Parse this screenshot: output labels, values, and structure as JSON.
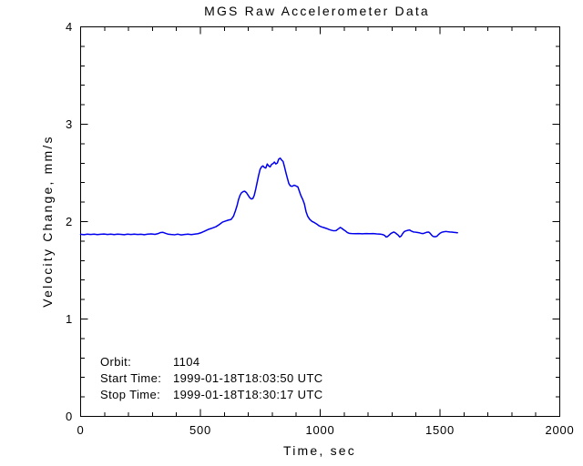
{
  "figure": {
    "background": "#ffffff"
  },
  "annotations": {
    "orbit_label": "Orbit:",
    "orbit_value": "1104",
    "start_label": "Start Time:",
    "start_value": "1999-01-18T18:03:50 UTC",
    "stop_label": "Stop Time:",
    "stop_value": "1999-01-18T18:30:17 UTC"
  },
  "chart_data": {
    "type": "line",
    "title": "MGS Raw Accelerometer Data",
    "xlabel": "Time, sec",
    "ylabel": "Velocity Change, mm/s",
    "xlim": [
      0,
      2000
    ],
    "ylim": [
      0,
      4
    ],
    "x_major_ticks": [
      0,
      500,
      1000,
      1500,
      2000
    ],
    "x_minor_step": 100,
    "y_major_ticks": [
      0,
      1,
      2,
      3,
      4
    ],
    "y_minor_step": 0.2,
    "grid": false,
    "legend": "none",
    "line_color": "#0000ee",
    "axis_color": "#000000",
    "series": [
      {
        "name": "velocity_change_mm_s",
        "points": [
          [
            0,
            1.87
          ],
          [
            14,
            1.866
          ],
          [
            28,
            1.871
          ],
          [
            42,
            1.868
          ],
          [
            56,
            1.872
          ],
          [
            70,
            1.867
          ],
          [
            84,
            1.87
          ],
          [
            98,
            1.873
          ],
          [
            112,
            1.868
          ],
          [
            126,
            1.871
          ],
          [
            140,
            1.867
          ],
          [
            154,
            1.872
          ],
          [
            168,
            1.869
          ],
          [
            182,
            1.866
          ],
          [
            196,
            1.871
          ],
          [
            210,
            1.868
          ],
          [
            224,
            1.872
          ],
          [
            238,
            1.868
          ],
          [
            252,
            1.87
          ],
          [
            266,
            1.866
          ],
          [
            280,
            1.871
          ],
          [
            295,
            1.874
          ],
          [
            310,
            1.869
          ],
          [
            322,
            1.876
          ],
          [
            334,
            1.888
          ],
          [
            344,
            1.89
          ],
          [
            354,
            1.88
          ],
          [
            364,
            1.872
          ],
          [
            378,
            1.868
          ],
          [
            392,
            1.865
          ],
          [
            406,
            1.871
          ],
          [
            420,
            1.863
          ],
          [
            434,
            1.868
          ],
          [
            448,
            1.871
          ],
          [
            462,
            1.867
          ],
          [
            476,
            1.872
          ],
          [
            490,
            1.876
          ],
          [
            505,
            1.888
          ],
          [
            520,
            1.905
          ],
          [
            535,
            1.922
          ],
          [
            550,
            1.934
          ],
          [
            565,
            1.948
          ],
          [
            580,
            1.972
          ],
          [
            592,
            1.995
          ],
          [
            604,
            2.005
          ],
          [
            616,
            2.015
          ],
          [
            628,
            2.022
          ],
          [
            638,
            2.055
          ],
          [
            646,
            2.11
          ],
          [
            653,
            2.165
          ],
          [
            659,
            2.225
          ],
          [
            665,
            2.268
          ],
          [
            671,
            2.295
          ],
          [
            678,
            2.308
          ],
          [
            685,
            2.312
          ],
          [
            692,
            2.298
          ],
          [
            699,
            2.272
          ],
          [
            706,
            2.245
          ],
          [
            713,
            2.232
          ],
          [
            719,
            2.238
          ],
          [
            725,
            2.272
          ],
          [
            731,
            2.335
          ],
          [
            737,
            2.405
          ],
          [
            743,
            2.475
          ],
          [
            749,
            2.535
          ],
          [
            755,
            2.562
          ],
          [
            761,
            2.572
          ],
          [
            767,
            2.556
          ],
          [
            773,
            2.55
          ],
          [
            779,
            2.592
          ],
          [
            785,
            2.572
          ],
          [
            791,
            2.562
          ],
          [
            797,
            2.588
          ],
          [
            803,
            2.596
          ],
          [
            809,
            2.612
          ],
          [
            815,
            2.592
          ],
          [
            821,
            2.602
          ],
          [
            827,
            2.642
          ],
          [
            833,
            2.652
          ],
          [
            839,
            2.632
          ],
          [
            845,
            2.618
          ],
          [
            851,
            2.562
          ],
          [
            857,
            2.502
          ],
          [
            863,
            2.446
          ],
          [
            869,
            2.392
          ],
          [
            875,
            2.368
          ],
          [
            883,
            2.362
          ],
          [
            891,
            2.374
          ],
          [
            899,
            2.366
          ],
          [
            907,
            2.356
          ],
          [
            913,
            2.312
          ],
          [
            920,
            2.264
          ],
          [
            927,
            2.228
          ],
          [
            934,
            2.182
          ],
          [
            941,
            2.102
          ],
          [
            948,
            2.054
          ],
          [
            956,
            2.024
          ],
          [
            966,
            2.002
          ],
          [
            976,
            1.99
          ],
          [
            986,
            1.974
          ],
          [
            996,
            1.956
          ],
          [
            1006,
            1.946
          ],
          [
            1016,
            1.938
          ],
          [
            1026,
            1.93
          ],
          [
            1036,
            1.92
          ],
          [
            1046,
            1.912
          ],
          [
            1056,
            1.906
          ],
          [
            1066,
            1.908
          ],
          [
            1076,
            1.926
          ],
          [
            1084,
            1.94
          ],
          [
            1091,
            1.93
          ],
          [
            1098,
            1.916
          ],
          [
            1105,
            1.905
          ],
          [
            1113,
            1.888
          ],
          [
            1121,
            1.88
          ],
          [
            1131,
            1.877
          ],
          [
            1146,
            1.876
          ],
          [
            1161,
            1.877
          ],
          [
            1176,
            1.875
          ],
          [
            1191,
            1.877
          ],
          [
            1206,
            1.876
          ],
          [
            1221,
            1.877
          ],
          [
            1236,
            1.874
          ],
          [
            1251,
            1.872
          ],
          [
            1261,
            1.867
          ],
          [
            1269,
            1.858
          ],
          [
            1275,
            1.842
          ],
          [
            1281,
            1.846
          ],
          [
            1288,
            1.862
          ],
          [
            1295,
            1.878
          ],
          [
            1301,
            1.886
          ],
          [
            1307,
            1.893
          ],
          [
            1313,
            1.886
          ],
          [
            1319,
            1.874
          ],
          [
            1326,
            1.86
          ],
          [
            1332,
            1.842
          ],
          [
            1338,
            1.852
          ],
          [
            1344,
            1.876
          ],
          [
            1351,
            1.898
          ],
          [
            1359,
            1.906
          ],
          [
            1367,
            1.911
          ],
          [
            1373,
            1.914
          ],
          [
            1381,
            1.902
          ],
          [
            1389,
            1.894
          ],
          [
            1397,
            1.892
          ],
          [
            1405,
            1.889
          ],
          [
            1413,
            1.886
          ],
          [
            1421,
            1.88
          ],
          [
            1429,
            1.877
          ],
          [
            1437,
            1.884
          ],
          [
            1445,
            1.891
          ],
          [
            1453,
            1.893
          ],
          [
            1459,
            1.88
          ],
          [
            1465,
            1.862
          ],
          [
            1471,
            1.848
          ],
          [
            1479,
            1.845
          ],
          [
            1487,
            1.849
          ],
          [
            1495,
            1.87
          ],
          [
            1501,
            1.882
          ],
          [
            1509,
            1.892
          ],
          [
            1517,
            1.896
          ],
          [
            1525,
            1.899
          ],
          [
            1533,
            1.896
          ],
          [
            1541,
            1.894
          ],
          [
            1549,
            1.893
          ],
          [
            1557,
            1.89
          ],
          [
            1565,
            1.888
          ],
          [
            1573,
            1.886
          ]
        ]
      }
    ]
  }
}
